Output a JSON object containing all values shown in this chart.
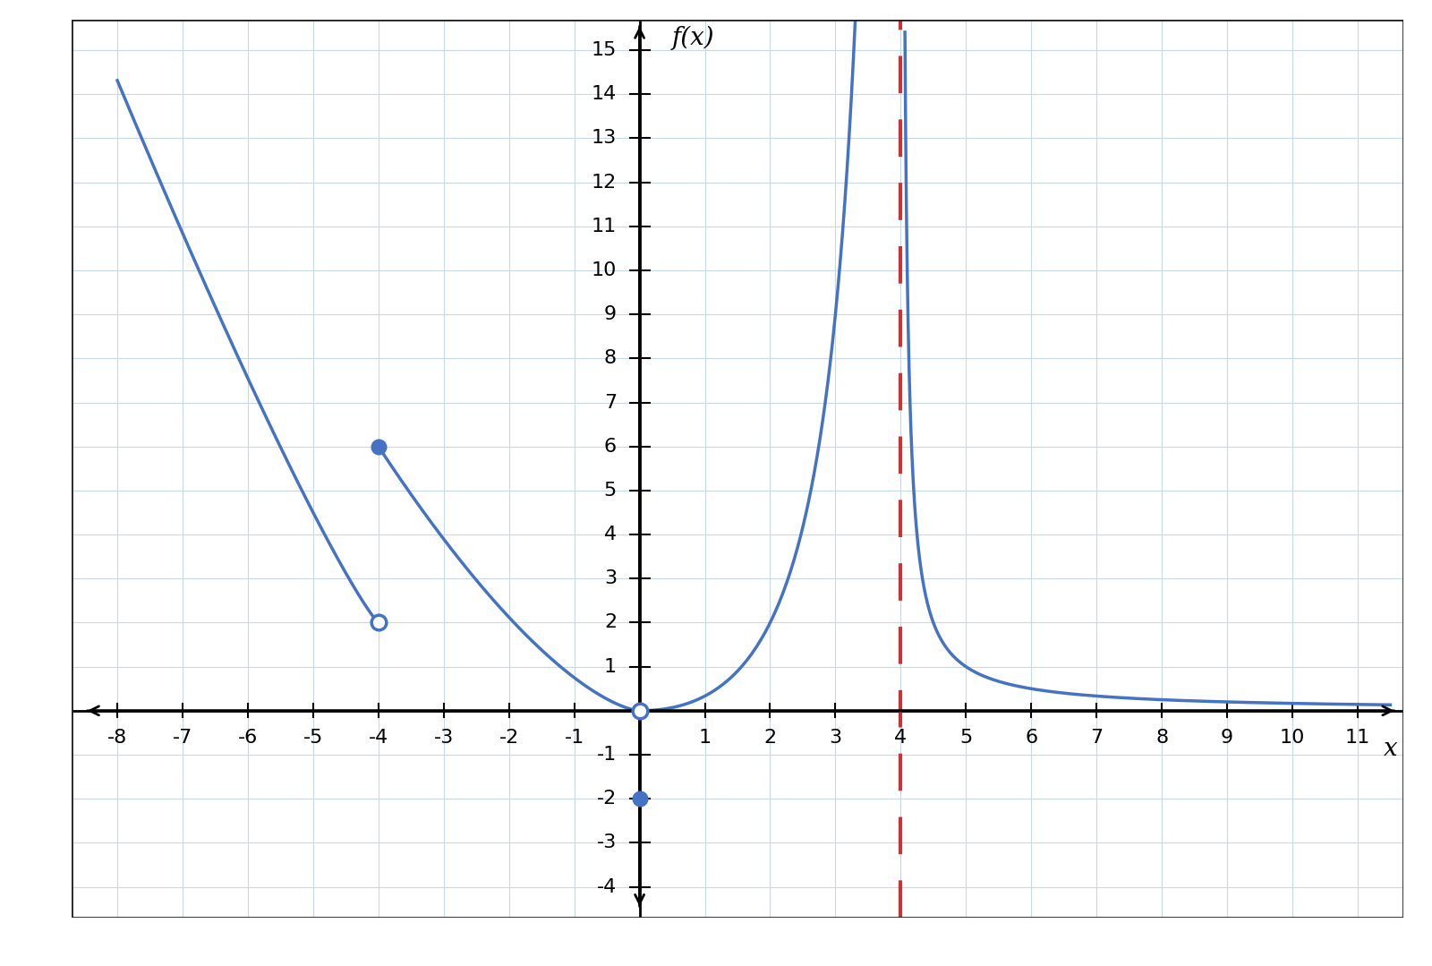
{
  "xlim": [
    -8.7,
    11.7
  ],
  "ylim": [
    -4.7,
    15.7
  ],
  "xtick_vals": [
    -8,
    -7,
    -6,
    -5,
    -4,
    -3,
    -2,
    -1,
    1,
    2,
    3,
    4,
    5,
    6,
    7,
    8,
    9,
    10,
    11
  ],
  "ytick_vals": [
    -4,
    -3,
    -2,
    -1,
    1,
    2,
    3,
    4,
    5,
    6,
    7,
    8,
    9,
    10,
    11,
    12,
    13,
    14,
    15
  ],
  "curve_color": "#4472C4",
  "asymptote_color": "#CC3333",
  "bg_color": "#FFFFFF",
  "grid_color": "#C8D8E8",
  "open_circles": [
    [
      -4,
      2
    ],
    [
      0,
      0
    ]
  ],
  "filled_circles": [
    [
      -4,
      6
    ],
    [
      0,
      -2
    ]
  ],
  "asymptote_x": 4,
  "figsize": [
    16.0,
    10.79
  ],
  "dpi": 100,
  "lw": 2.5,
  "tick_fontsize": 16,
  "label_fontsize": 20,
  "marker_size": 12,
  "border_color": "#222222"
}
